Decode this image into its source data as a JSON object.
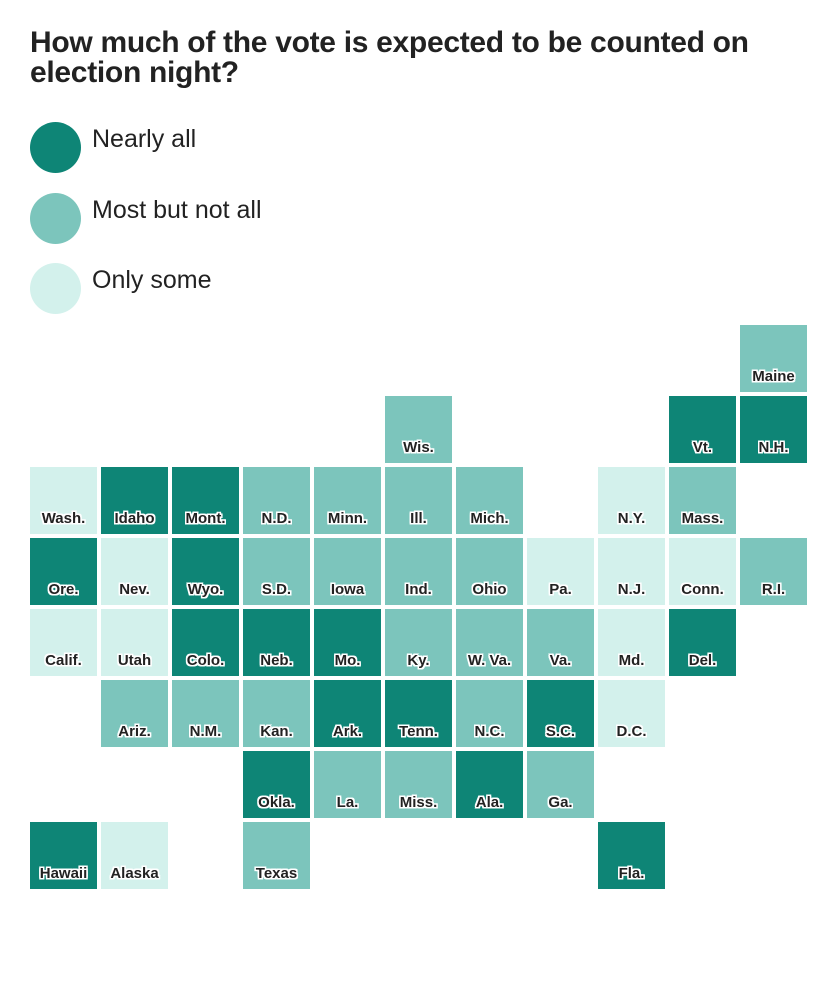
{
  "title": "How much of the vote is expected to be counted on election night?",
  "legend": [
    {
      "key": "all",
      "label": "Nearly all",
      "color": "#0e8576"
    },
    {
      "key": "most",
      "label": "Most but not all",
      "color": "#7cc5bc"
    },
    {
      "key": "some",
      "label": "Only some",
      "color": "#d3f1ec"
    }
  ],
  "states": [
    {
      "label": "Maine",
      "col": 10,
      "row": 0,
      "category": "most"
    },
    {
      "label": "Wis.",
      "col": 5,
      "row": 1,
      "category": "most"
    },
    {
      "label": "Vt.",
      "col": 9,
      "row": 1,
      "category": "all"
    },
    {
      "label": "N.H.",
      "col": 10,
      "row": 1,
      "category": "all"
    },
    {
      "label": "Wash.",
      "col": 0,
      "row": 2,
      "category": "some"
    },
    {
      "label": "Idaho",
      "col": 1,
      "row": 2,
      "category": "all"
    },
    {
      "label": "Mont.",
      "col": 2,
      "row": 2,
      "category": "all"
    },
    {
      "label": "N.D.",
      "col": 3,
      "row": 2,
      "category": "most"
    },
    {
      "label": "Minn.",
      "col": 4,
      "row": 2,
      "category": "most"
    },
    {
      "label": "Ill.",
      "col": 5,
      "row": 2,
      "category": "most"
    },
    {
      "label": "Mich.",
      "col": 6,
      "row": 2,
      "category": "most"
    },
    {
      "label": "N.Y.",
      "col": 8,
      "row": 2,
      "category": "some"
    },
    {
      "label": "Mass.",
      "col": 9,
      "row": 2,
      "category": "most"
    },
    {
      "label": "Ore.",
      "col": 0,
      "row": 3,
      "category": "all"
    },
    {
      "label": "Nev.",
      "col": 1,
      "row": 3,
      "category": "some"
    },
    {
      "label": "Wyo.",
      "col": 2,
      "row": 3,
      "category": "all"
    },
    {
      "label": "S.D.",
      "col": 3,
      "row": 3,
      "category": "most"
    },
    {
      "label": "Iowa",
      "col": 4,
      "row": 3,
      "category": "most"
    },
    {
      "label": "Ind.",
      "col": 5,
      "row": 3,
      "category": "most"
    },
    {
      "label": "Ohio",
      "col": 6,
      "row": 3,
      "category": "most"
    },
    {
      "label": "Pa.",
      "col": 7,
      "row": 3,
      "category": "some"
    },
    {
      "label": "N.J.",
      "col": 8,
      "row": 3,
      "category": "some"
    },
    {
      "label": "Conn.",
      "col": 9,
      "row": 3,
      "category": "some"
    },
    {
      "label": "R.I.",
      "col": 10,
      "row": 3,
      "category": "most"
    },
    {
      "label": "Calif.",
      "col": 0,
      "row": 4,
      "category": "some"
    },
    {
      "label": "Utah",
      "col": 1,
      "row": 4,
      "category": "some"
    },
    {
      "label": "Colo.",
      "col": 2,
      "row": 4,
      "category": "all"
    },
    {
      "label": "Neb.",
      "col": 3,
      "row": 4,
      "category": "all"
    },
    {
      "label": "Mo.",
      "col": 4,
      "row": 4,
      "category": "all"
    },
    {
      "label": "Ky.",
      "col": 5,
      "row": 4,
      "category": "most"
    },
    {
      "label": "W. Va.",
      "col": 6,
      "row": 4,
      "category": "most"
    },
    {
      "label": "Va.",
      "col": 7,
      "row": 4,
      "category": "most"
    },
    {
      "label": "Md.",
      "col": 8,
      "row": 4,
      "category": "some"
    },
    {
      "label": "Del.",
      "col": 9,
      "row": 4,
      "category": "all"
    },
    {
      "label": "Ariz.",
      "col": 1,
      "row": 5,
      "category": "most"
    },
    {
      "label": "N.M.",
      "col": 2,
      "row": 5,
      "category": "most"
    },
    {
      "label": "Kan.",
      "col": 3,
      "row": 5,
      "category": "most"
    },
    {
      "label": "Ark.",
      "col": 4,
      "row": 5,
      "category": "all"
    },
    {
      "label": "Tenn.",
      "col": 5,
      "row": 5,
      "category": "all"
    },
    {
      "label": "N.C.",
      "col": 6,
      "row": 5,
      "category": "most"
    },
    {
      "label": "S.C.",
      "col": 7,
      "row": 5,
      "category": "all"
    },
    {
      "label": "D.C.",
      "col": 8,
      "row": 5,
      "category": "some"
    },
    {
      "label": "Okla.",
      "col": 3,
      "row": 6,
      "category": "all"
    },
    {
      "label": "La.",
      "col": 4,
      "row": 6,
      "category": "most"
    },
    {
      "label": "Miss.",
      "col": 5,
      "row": 6,
      "category": "most"
    },
    {
      "label": "Ala.",
      "col": 6,
      "row": 6,
      "category": "all"
    },
    {
      "label": "Ga.",
      "col": 7,
      "row": 6,
      "category": "most"
    },
    {
      "label": "Hawaii",
      "col": 0,
      "row": 7,
      "category": "all"
    },
    {
      "label": "Alaska",
      "col": 1,
      "row": 7,
      "category": "some"
    },
    {
      "label": "Texas",
      "col": 3,
      "row": 7,
      "category": "most"
    },
    {
      "label": "Fla.",
      "col": 8,
      "row": 7,
      "category": "all"
    }
  ]
}
